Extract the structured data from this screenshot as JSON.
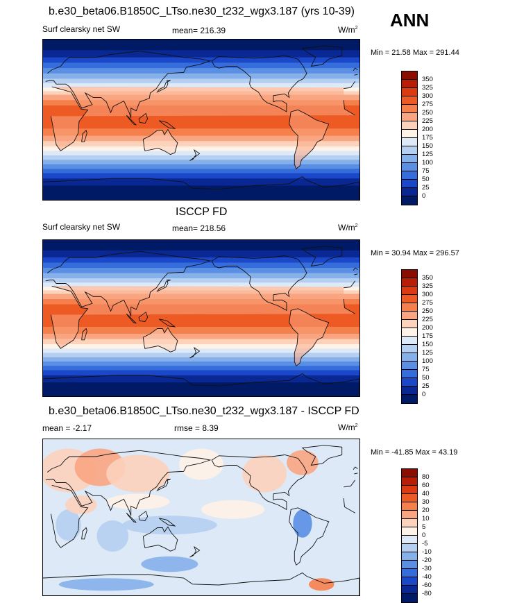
{
  "season": "ANN",
  "panels": [
    {
      "title": "b.e30_beta06.B1850C_LTso.ne30_t232_wgx3.187 (yrs 10-39)",
      "left_label": "Surf clearsky net SW",
      "center_label": "mean= 216.39",
      "units": "W/m",
      "units_sup": "2",
      "minmax": "Min =  21.58 Max = 291.44",
      "colorbar": {
        "levels": [
          "350",
          "325",
          "300",
          "275",
          "250",
          "225",
          "200",
          "175",
          "150",
          "125",
          "100",
          "75",
          "50",
          "25",
          "0"
        ],
        "colors": [
          "#8b0d00",
          "#b81d06",
          "#dc3a10",
          "#ee5a24",
          "#f6804b",
          "#f9a582",
          "#fcd2bb",
          "#fff2e6",
          "#dde9f7",
          "#b5cff0",
          "#86b0ea",
          "#5a8fe4",
          "#356ddc",
          "#1b48c8",
          "#0a2894",
          "#001a66"
        ]
      },
      "kind": "field"
    },
    {
      "title": "ISCCP FD",
      "left_label": "Surf clearsky net SW",
      "center_label": "mean= 218.56",
      "units": "W/m",
      "units_sup": "2",
      "minmax": "Min =  30.94 Max = 296.57",
      "colorbar": {
        "levels": [
          "350",
          "325",
          "300",
          "275",
          "250",
          "225",
          "200",
          "175",
          "150",
          "125",
          "100",
          "75",
          "50",
          "25",
          "0"
        ],
        "colors": [
          "#8b0d00",
          "#b81d06",
          "#dc3a10",
          "#ee5a24",
          "#f6804b",
          "#f9a582",
          "#fcd2bb",
          "#fff2e6",
          "#dde9f7",
          "#b5cff0",
          "#86b0ea",
          "#5a8fe4",
          "#356ddc",
          "#1b48c8",
          "#0a2894",
          "#001a66"
        ]
      },
      "kind": "field"
    },
    {
      "title": "b.e30_beta06.B1850C_LTso.ne30_t232_wgx3.187 - ISCCP FD",
      "left_label": "mean =  -2.17",
      "center_label": "rmse =   8.39",
      "units": "W/m",
      "units_sup": "2",
      "minmax": "Min = -41.85 Max =  43.19",
      "colorbar": {
        "levels": [
          "80",
          "60",
          "40",
          "30",
          "20",
          "10",
          "5",
          "0",
          "-5",
          "-10",
          "-20",
          "-30",
          "-40",
          "-60",
          "-80"
        ],
        "colors": [
          "#8b0d00",
          "#b81d06",
          "#dc3a10",
          "#ee5a24",
          "#f6804b",
          "#f9a582",
          "#fcd2bb",
          "#fff2e6",
          "#dde9f7",
          "#b5cff0",
          "#86b0ea",
          "#5a8fe4",
          "#356ddc",
          "#1b48c8",
          "#0a2894",
          "#001a66"
        ]
      },
      "kind": "diff"
    }
  ]
}
